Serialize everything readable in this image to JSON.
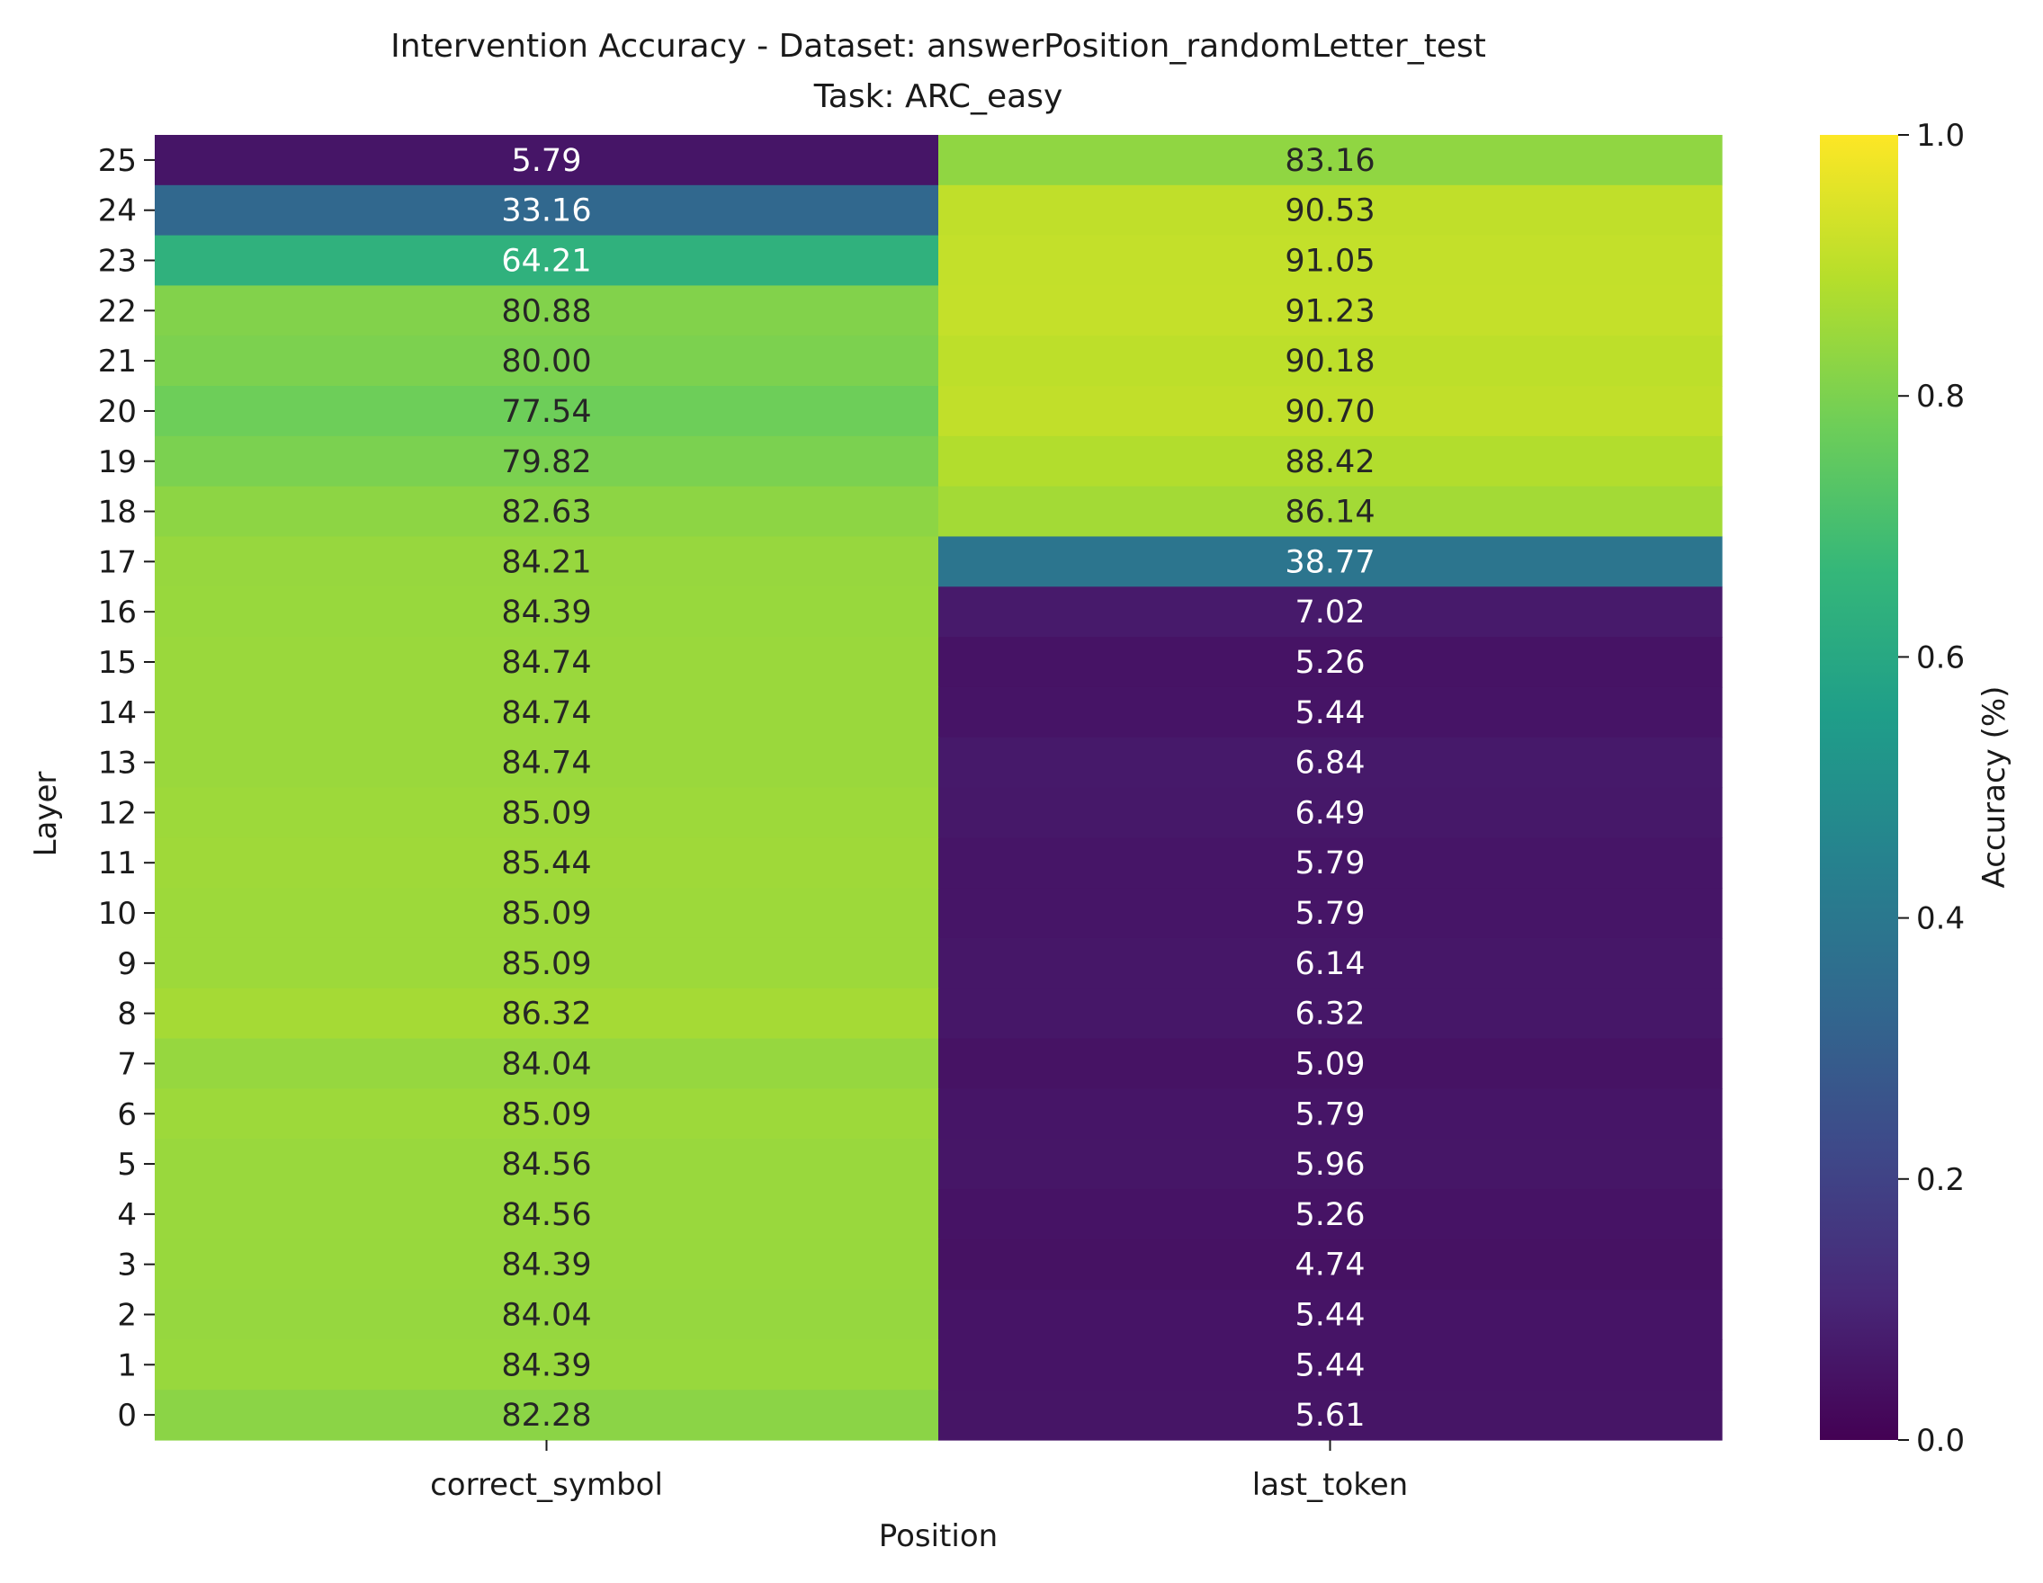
{
  "chart_data": {
    "type": "heatmap",
    "title": "Intervention Accuracy - Dataset: answerPosition_randomLetter_test",
    "subtitle": "Task: ARC_easy",
    "xlabel": "Position",
    "ylabel": "Layer",
    "columns": [
      "correct_symbol",
      "last_token"
    ],
    "rows": [
      "25",
      "24",
      "23",
      "22",
      "21",
      "20",
      "19",
      "18",
      "17",
      "16",
      "15",
      "14",
      "13",
      "12",
      "11",
      "10",
      "9",
      "8",
      "7",
      "6",
      "5",
      "4",
      "3",
      "2",
      "1",
      "0"
    ],
    "values": [
      [
        5.79,
        83.16
      ],
      [
        33.16,
        90.53
      ],
      [
        64.21,
        91.05
      ],
      [
        80.88,
        91.23
      ],
      [
        80.0,
        90.18
      ],
      [
        77.54,
        90.7
      ],
      [
        79.82,
        88.42
      ],
      [
        82.63,
        86.14
      ],
      [
        84.21,
        38.77
      ],
      [
        84.39,
        7.02
      ],
      [
        84.74,
        5.26
      ],
      [
        84.74,
        5.44
      ],
      [
        84.74,
        6.84
      ],
      [
        85.09,
        6.49
      ],
      [
        85.44,
        5.79
      ],
      [
        85.09,
        5.79
      ],
      [
        85.09,
        6.14
      ],
      [
        86.32,
        6.32
      ],
      [
        84.04,
        5.09
      ],
      [
        85.09,
        5.79
      ],
      [
        84.56,
        5.96
      ],
      [
        84.56,
        5.26
      ],
      [
        84.39,
        4.74
      ],
      [
        84.04,
        5.44
      ],
      [
        84.39,
        5.44
      ],
      [
        82.28,
        5.61
      ]
    ],
    "labels": [
      [
        "5.79",
        "83.16"
      ],
      [
        "33.16",
        "90.53"
      ],
      [
        "64.21",
        "91.05"
      ],
      [
        "80.88",
        "91.23"
      ],
      [
        "80.00",
        "90.18"
      ],
      [
        "77.54",
        "90.70"
      ],
      [
        "79.82",
        "88.42"
      ],
      [
        "82.63",
        "86.14"
      ],
      [
        "84.21",
        "38.77"
      ],
      [
        "84.39",
        "7.02"
      ],
      [
        "84.74",
        "5.26"
      ],
      [
        "84.74",
        "5.44"
      ],
      [
        "84.74",
        "6.84"
      ],
      [
        "85.09",
        "6.49"
      ],
      [
        "85.44",
        "5.79"
      ],
      [
        "85.09",
        "5.79"
      ],
      [
        "85.09",
        "6.14"
      ],
      [
        "86.32",
        "6.32"
      ],
      [
        "84.04",
        "5.09"
      ],
      [
        "85.09",
        "5.79"
      ],
      [
        "84.56",
        "5.96"
      ],
      [
        "84.56",
        "5.26"
      ],
      [
        "84.39",
        "4.74"
      ],
      [
        "84.04",
        "5.44"
      ],
      [
        "84.39",
        "5.44"
      ],
      [
        "82.28",
        "5.61"
      ]
    ],
    "colormap": "viridis",
    "vmin": 0.0,
    "vmax": 1.0,
    "colorbar": {
      "label": "Accuracy (%)",
      "ticks": [
        0.0,
        0.2,
        0.4,
        0.6,
        0.8,
        1.0
      ],
      "tick_labels": [
        "0.0",
        "0.2",
        "0.4",
        "0.6",
        "0.8",
        "1.0"
      ]
    },
    "grid": false,
    "legend": "colorbar-right"
  }
}
